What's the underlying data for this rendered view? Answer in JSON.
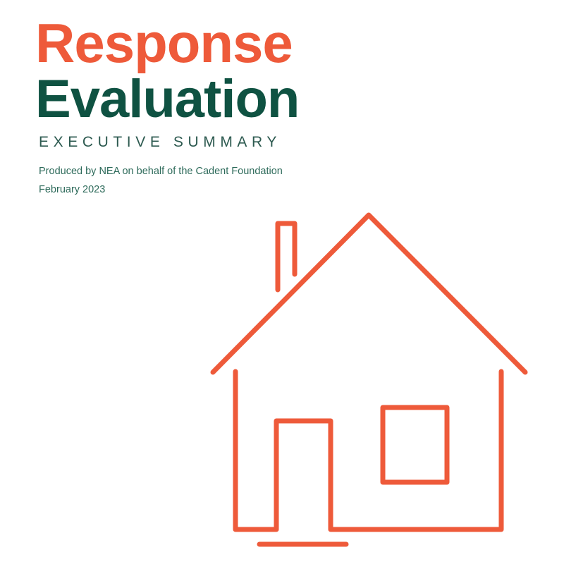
{
  "cover": {
    "title_line1": "Response",
    "title_line2": "Evaluation",
    "subtitle": "EXECUTIVE SUMMARY",
    "producer": "Produced by NEA on behalf of the Cadent Foundation",
    "date": "February 2023"
  },
  "colors": {
    "accent": "#ee5a3a",
    "primary": "#0f5242"
  },
  "illustration": {
    "icon": "house-outline-icon"
  }
}
